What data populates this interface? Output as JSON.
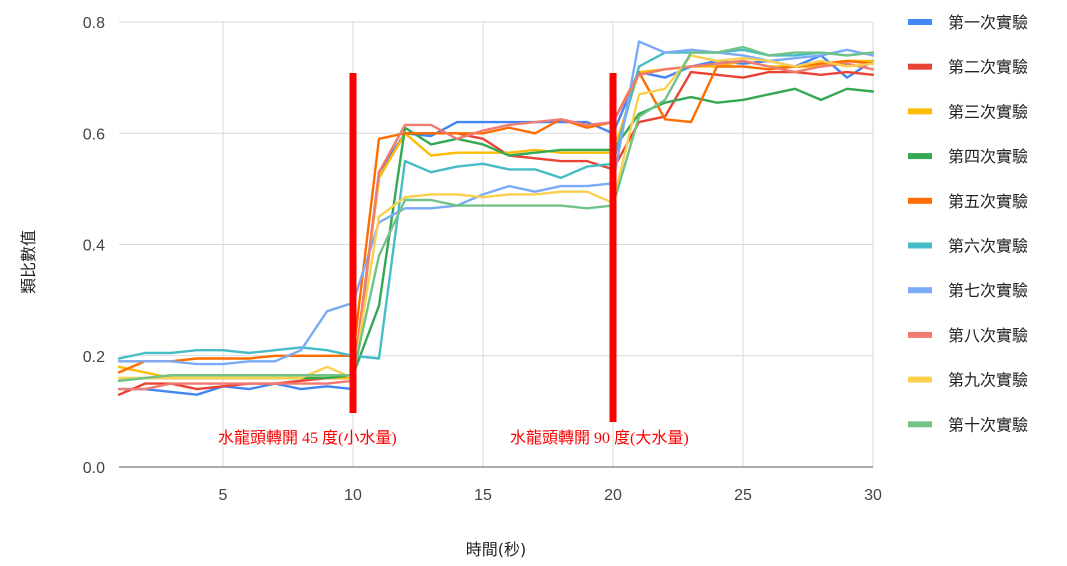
{
  "chart_data": {
    "type": "line",
    "xlabel": "時間(秒)",
    "ylabel": "類比數值",
    "xlim": [
      1,
      30
    ],
    "ylim": [
      0,
      0.8
    ],
    "xticks": [
      5,
      10,
      15,
      20,
      25,
      30
    ],
    "xtick_labels": [
      "5",
      "10",
      "15",
      "20",
      "25",
      "30"
    ],
    "yticks": [
      0,
      0.2,
      0.4,
      0.6,
      0.8
    ],
    "ytick_labels": [
      "0.0",
      "0.2",
      "0.4",
      "0.6",
      "0.8"
    ],
    "grid": true,
    "legend": "right",
    "x": [
      1,
      2,
      3,
      4,
      5,
      6,
      7,
      8,
      9,
      10,
      11,
      12,
      13,
      14,
      15,
      16,
      17,
      18,
      19,
      20,
      21,
      22,
      23,
      24,
      25,
      26,
      27,
      28,
      29,
      30
    ],
    "series": [
      {
        "name": "第一次實驗",
        "color": "#4285F4",
        "values": [
          0.14,
          0.14,
          0.135,
          0.13,
          0.145,
          0.14,
          0.15,
          0.14,
          0.145,
          0.14,
          0.53,
          0.6,
          0.595,
          0.62,
          0.62,
          0.62,
          0.62,
          0.62,
          0.62,
          0.6,
          0.71,
          0.7,
          0.72,
          0.73,
          0.725,
          0.73,
          0.72,
          0.74,
          0.7,
          0.73
        ]
      },
      {
        "name": "第二次實驗",
        "color": "#EA4335",
        "values": [
          0.13,
          0.15,
          0.15,
          0.14,
          0.145,
          0.15,
          0.15,
          0.155,
          0.16,
          0.16,
          0.52,
          0.6,
          0.6,
          0.6,
          0.59,
          0.56,
          0.555,
          0.55,
          0.55,
          0.535,
          0.62,
          0.63,
          0.71,
          0.705,
          0.7,
          0.71,
          0.71,
          0.705,
          0.71,
          0.705
        ]
      },
      {
        "name": "第三次實驗",
        "color": "#FBBC04",
        "values": [
          0.18,
          0.17,
          0.16,
          0.16,
          0.16,
          0.16,
          0.16,
          0.16,
          0.16,
          0.16,
          0.52,
          0.6,
          0.56,
          0.565,
          0.565,
          0.565,
          0.57,
          0.565,
          0.565,
          0.565,
          0.71,
          0.715,
          0.72,
          0.72,
          0.73,
          0.72,
          0.72,
          0.72,
          0.73,
          0.73
        ]
      },
      {
        "name": "第四次實驗",
        "color": "#34A853",
        "values": [
          0.155,
          0.16,
          0.16,
          0.16,
          0.16,
          0.16,
          0.16,
          0.16,
          0.16,
          0.165,
          0.29,
          0.61,
          0.58,
          0.59,
          0.58,
          0.56,
          0.565,
          0.57,
          0.57,
          0.57,
          0.635,
          0.655,
          0.665,
          0.655,
          0.66,
          0.67,
          0.68,
          0.66,
          0.68,
          0.675
        ]
      },
      {
        "name": "第五次實驗",
        "color": "#FF6D01",
        "values": [
          0.17,
          0.19,
          0.19,
          0.195,
          0.195,
          0.195,
          0.2,
          0.2,
          0.2,
          0.2,
          0.59,
          0.6,
          0.6,
          0.6,
          0.6,
          0.61,
          0.6,
          0.625,
          0.61,
          0.62,
          0.71,
          0.625,
          0.62,
          0.72,
          0.72,
          0.715,
          0.72,
          0.725,
          0.73,
          0.725
        ]
      },
      {
        "name": "第六次實驗",
        "color": "#46BDC6",
        "values": [
          0.195,
          0.205,
          0.205,
          0.21,
          0.21,
          0.205,
          0.21,
          0.215,
          0.21,
          0.2,
          0.195,
          0.55,
          0.53,
          0.54,
          0.545,
          0.535,
          0.535,
          0.52,
          0.54,
          0.545,
          0.72,
          0.745,
          0.745,
          0.745,
          0.75,
          0.74,
          0.74,
          0.745,
          0.74,
          0.745
        ]
      },
      {
        "name": "第七次實驗",
        "color": "#7BAAF7",
        "values": [
          0.19,
          0.19,
          0.19,
          0.185,
          0.185,
          0.19,
          0.19,
          0.21,
          0.28,
          0.295,
          0.44,
          0.465,
          0.465,
          0.47,
          0.49,
          0.505,
          0.495,
          0.505,
          0.505,
          0.51,
          0.765,
          0.745,
          0.75,
          0.745,
          0.74,
          0.73,
          0.735,
          0.74,
          0.75,
          0.74
        ]
      },
      {
        "name": "第八次實驗",
        "color": "#F07B72",
        "values": [
          0.14,
          0.14,
          0.15,
          0.15,
          0.15,
          0.15,
          0.15,
          0.15,
          0.15,
          0.155,
          0.53,
          0.615,
          0.615,
          0.59,
          0.605,
          0.615,
          0.62,
          0.625,
          0.615,
          0.62,
          0.705,
          0.715,
          0.72,
          0.725,
          0.73,
          0.72,
          0.71,
          0.72,
          0.725,
          0.715
        ]
      },
      {
        "name": "第九次實驗",
        "color": "#FCD04F",
        "values": [
          0.16,
          0.16,
          0.16,
          0.16,
          0.16,
          0.16,
          0.16,
          0.16,
          0.18,
          0.16,
          0.45,
          0.485,
          0.49,
          0.49,
          0.485,
          0.49,
          0.49,
          0.495,
          0.495,
          0.475,
          0.67,
          0.68,
          0.74,
          0.73,
          0.735,
          0.73,
          0.72,
          0.73,
          0.72,
          0.725
        ]
      },
      {
        "name": "第十次實驗",
        "color": "#71C287",
        "values": [
          0.155,
          0.16,
          0.165,
          0.165,
          0.165,
          0.165,
          0.165,
          0.165,
          0.165,
          0.165,
          0.38,
          0.48,
          0.48,
          0.47,
          0.47,
          0.47,
          0.47,
          0.47,
          0.465,
          0.47,
          0.63,
          0.66,
          0.745,
          0.745,
          0.755,
          0.74,
          0.745,
          0.745,
          0.74,
          0.745
        ]
      }
    ],
    "annotations": [
      {
        "x": 10,
        "text": "水龍頭轉開 45 度(小水量)",
        "color": "#FF0000"
      },
      {
        "x": 20,
        "text": "水龍頭轉開 90 度(大水量)",
        "color": "#FF0000"
      }
    ]
  }
}
